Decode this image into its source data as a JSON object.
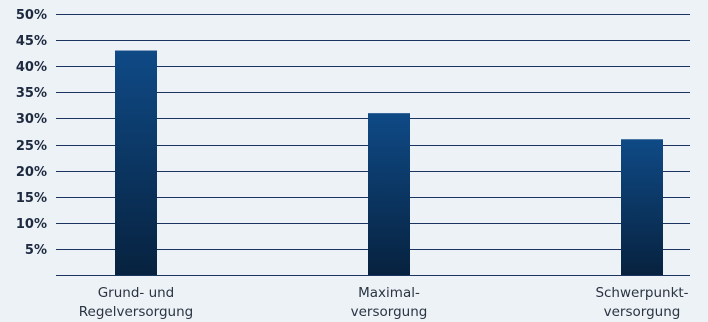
{
  "chart_data": {
    "type": "bar",
    "title": "",
    "xlabel": "",
    "ylabel": "",
    "categories": [
      [
        "Grund- und",
        "Regelversorgung"
      ],
      [
        "Maximal-",
        "versorgung"
      ],
      [
        "Schwerpunkt-",
        "versorgung"
      ]
    ],
    "values": [
      43,
      31,
      26
    ],
    "ylim": [
      0,
      50
    ],
    "yticks": [
      "5%",
      "10%",
      "15%",
      "20%",
      "25%",
      "30%",
      "35%",
      "40%",
      "45%",
      "50%"
    ],
    "grid": true,
    "legend": "none",
    "colors": {
      "bar_top": "#0f4a86",
      "bar_bottom": "#07223f",
      "grid": "#1c3560",
      "background": "#edf2f6"
    }
  }
}
